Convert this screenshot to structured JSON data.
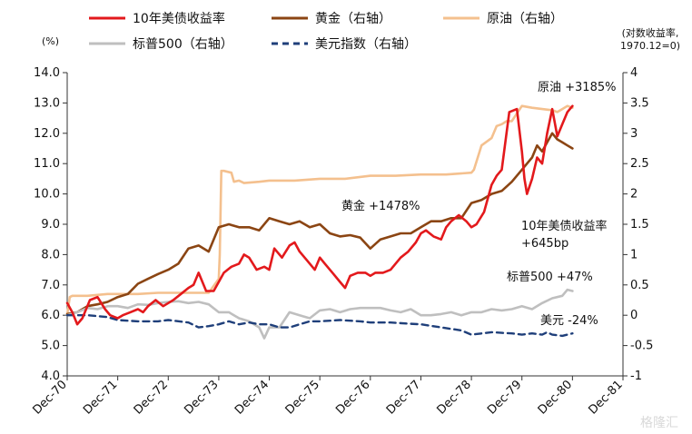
{
  "chart_data": {
    "type": "line",
    "title": "",
    "left_axis": {
      "label": "(%)",
      "range": [
        4.0,
        14.0
      ],
      "ticks": [
        "4.0",
        "5.0",
        "6.0",
        "7.0",
        "8.0",
        "9.0",
        "10.0",
        "11.0",
        "12.0",
        "13.0",
        "14.0"
      ]
    },
    "right_axis": {
      "label_line1": "(对数收益率,",
      "label_line2": "1970.12=0)",
      "range": [
        -1,
        4
      ],
      "ticks": [
        "-1",
        "-0.5",
        "0",
        "0.5",
        "1",
        "1.5",
        "2",
        "2.5",
        "3",
        "3.5",
        "4"
      ]
    },
    "x_axis": {
      "ticks": [
        "Dec-70",
        "Dec-71",
        "Dec-72",
        "Dec-73",
        "Dec-74",
        "Dec-75",
        "Dec-76",
        "Dec-77",
        "Dec-78",
        "Dec-79",
        "Dec-80",
        "Dec-81"
      ]
    },
    "legend": [
      {
        "key": "treasury",
        "label": "10年美债收益率",
        "color": "#e3191c",
        "style": "solid"
      },
      {
        "key": "gold",
        "label": "黄金（右轴）",
        "color": "#8b4513",
        "style": "solid"
      },
      {
        "key": "oil",
        "label": "原油（右轴）",
        "color": "#f4c08e",
        "style": "solid"
      },
      {
        "key": "sp500",
        "label": "标普500（右轴）",
        "color": "#bfbfbf",
        "style": "solid"
      },
      {
        "key": "usd",
        "label": "美元指数（右轴）",
        "color": "#1f3f7a",
        "style": "dashed"
      }
    ],
    "series": [
      {
        "key": "treasury",
        "name": "10年美债收益率",
        "axis": "left",
        "color": "#e3191c",
        "x": [
          0,
          0.1,
          0.2,
          0.3,
          0.45,
          0.6,
          0.75,
          0.85,
          1.0,
          1.1,
          1.25,
          1.4,
          1.5,
          1.6,
          1.75,
          1.9,
          2.0,
          2.1,
          2.25,
          2.4,
          2.5,
          2.6,
          2.75,
          2.9,
          3.0,
          3.1,
          3.25,
          3.4,
          3.5,
          3.6,
          3.75,
          3.9,
          4.0,
          4.1,
          4.25,
          4.4,
          4.5,
          4.6,
          4.75,
          4.9,
          5.0,
          5.1,
          5.25,
          5.4,
          5.5,
          5.6,
          5.75,
          5.9,
          6.0,
          6.1,
          6.25,
          6.4,
          6.5,
          6.6,
          6.75,
          6.9,
          7.0,
          7.1,
          7.25,
          7.4,
          7.5,
          7.6,
          7.75,
          7.9,
          8.0,
          8.1,
          8.25,
          8.4,
          8.5,
          8.6,
          8.75,
          8.9,
          9.0,
          9.05,
          9.1,
          9.2,
          9.3,
          9.4,
          9.5,
          9.6,
          9.7,
          9.8,
          9.9,
          10.0
        ],
        "values": [
          6.4,
          6.1,
          5.7,
          5.9,
          6.5,
          6.6,
          6.2,
          6.0,
          5.9,
          6.0,
          6.1,
          6.2,
          6.1,
          6.3,
          6.5,
          6.3,
          6.4,
          6.5,
          6.7,
          6.9,
          7.0,
          7.4,
          6.8,
          6.8,
          7.1,
          7.4,
          7.6,
          7.7,
          8.0,
          7.9,
          7.5,
          7.6,
          7.5,
          8.2,
          7.9,
          8.3,
          8.4,
          8.1,
          7.8,
          7.5,
          7.9,
          7.7,
          7.4,
          7.1,
          6.9,
          7.3,
          7.4,
          7.4,
          7.3,
          7.4,
          7.4,
          7.5,
          7.7,
          7.9,
          8.1,
          8.4,
          8.7,
          8.8,
          8.6,
          8.5,
          8.9,
          9.1,
          9.3,
          9.1,
          8.9,
          9.0,
          9.4,
          10.3,
          10.6,
          10.8,
          12.7,
          12.8,
          11.4,
          10.5,
          10.0,
          10.5,
          11.2,
          11.0,
          12.0,
          12.8,
          11.9,
          12.3,
          12.7,
          12.9
        ]
      },
      {
        "key": "gold",
        "name": "黄金（右轴）",
        "axis": "right",
        "color": "#8b4513",
        "x": [
          0,
          0.2,
          0.4,
          0.6,
          0.8,
          1.0,
          1.2,
          1.4,
          1.6,
          1.8,
          2.0,
          2.2,
          2.4,
          2.6,
          2.8,
          3.0,
          3.2,
          3.4,
          3.6,
          3.8,
          4.0,
          4.2,
          4.4,
          4.6,
          4.8,
          5.0,
          5.2,
          5.4,
          5.6,
          5.8,
          6.0,
          6.2,
          6.4,
          6.6,
          6.8,
          7.0,
          7.2,
          7.4,
          7.6,
          7.8,
          8.0,
          8.2,
          8.4,
          8.6,
          8.8,
          9.0,
          9.1,
          9.2,
          9.3,
          9.4,
          9.5,
          9.6,
          9.7,
          9.8,
          9.9,
          10.0
        ],
        "values": [
          0.02,
          0.05,
          0.15,
          0.18,
          0.22,
          0.3,
          0.35,
          0.52,
          0.6,
          0.68,
          0.75,
          0.85,
          1.1,
          1.15,
          1.05,
          1.45,
          1.5,
          1.45,
          1.45,
          1.4,
          1.6,
          1.55,
          1.5,
          1.55,
          1.45,
          1.5,
          1.35,
          1.3,
          1.32,
          1.28,
          1.1,
          1.25,
          1.3,
          1.35,
          1.35,
          1.45,
          1.55,
          1.55,
          1.6,
          1.6,
          1.85,
          1.9,
          2.0,
          2.05,
          2.2,
          2.4,
          2.5,
          2.6,
          2.8,
          2.7,
          2.85,
          3.0,
          2.9,
          2.85,
          2.8,
          2.75
        ]
      },
      {
        "key": "oil",
        "name": "原油（右轴）",
        "axis": "right",
        "color": "#f4c08e",
        "x": [
          0,
          0.05,
          0.1,
          0.4,
          0.8,
          1.0,
          1.4,
          1.8,
          2.0,
          2.4,
          2.8,
          3.0,
          3.02,
          3.05,
          3.1,
          3.25,
          3.3,
          3.4,
          3.5,
          3.8,
          4.0,
          4.5,
          5.0,
          5.5,
          6.0,
          6.5,
          7.0,
          7.5,
          8.0,
          8.05,
          8.2,
          8.4,
          8.5,
          8.6,
          8.7,
          8.8,
          9.0,
          9.2,
          9.4,
          9.6,
          9.7,
          9.8,
          9.9,
          10.0
        ],
        "values": [
          0.0,
          0.3,
          0.32,
          0.32,
          0.35,
          0.35,
          0.35,
          0.37,
          0.37,
          0.37,
          0.37,
          0.6,
          1.0,
          2.38,
          2.38,
          2.35,
          2.2,
          2.22,
          2.18,
          2.2,
          2.22,
          2.22,
          2.25,
          2.25,
          2.3,
          2.3,
          2.32,
          2.32,
          2.35,
          2.4,
          2.8,
          2.92,
          3.12,
          3.15,
          3.2,
          3.2,
          3.45,
          3.42,
          3.4,
          3.38,
          3.35,
          3.4,
          3.45,
          3.42
        ]
      },
      {
        "key": "sp500",
        "name": "标普500（右轴）",
        "axis": "right",
        "color": "#bfbfbf",
        "x": [
          0,
          0.2,
          0.4,
          0.6,
          0.8,
          1.0,
          1.2,
          1.4,
          1.6,
          1.8,
          2.0,
          2.2,
          2.4,
          2.6,
          2.8,
          3.0,
          3.2,
          3.4,
          3.6,
          3.8,
          3.9,
          4.0,
          4.2,
          4.4,
          4.6,
          4.8,
          5.0,
          5.2,
          5.4,
          5.6,
          5.8,
          6.0,
          6.2,
          6.4,
          6.6,
          6.8,
          7.0,
          7.2,
          7.4,
          7.6,
          7.8,
          8.0,
          8.2,
          8.4,
          8.6,
          8.8,
          9.0,
          9.2,
          9.4,
          9.6,
          9.8,
          9.9,
          10.0
        ],
        "values": [
          0.0,
          0.05,
          0.12,
          0.1,
          0.15,
          0.15,
          0.12,
          0.18,
          0.17,
          0.2,
          0.22,
          0.23,
          0.2,
          0.22,
          0.18,
          0.05,
          0.05,
          -0.05,
          -0.1,
          -0.2,
          -0.38,
          -0.2,
          -0.2,
          0.05,
          0.0,
          -0.05,
          0.08,
          0.1,
          0.05,
          0.1,
          0.12,
          0.12,
          0.12,
          0.08,
          0.05,
          0.1,
          0.0,
          0.0,
          0.02,
          0.05,
          0.0,
          0.05,
          0.05,
          0.1,
          0.08,
          0.1,
          0.15,
          0.1,
          0.2,
          0.28,
          0.32,
          0.42,
          0.4
        ]
      },
      {
        "key": "usd",
        "name": "美元指数（右轴）",
        "axis": "right",
        "color": "#1f3f7a",
        "x": [
          0,
          0.4,
          0.8,
          1.0,
          1.4,
          1.8,
          2.0,
          2.4,
          2.6,
          2.8,
          3.0,
          3.2,
          3.4,
          3.6,
          3.8,
          4.0,
          4.2,
          4.4,
          4.6,
          4.8,
          5.0,
          5.4,
          5.8,
          6.0,
          6.4,
          6.8,
          7.0,
          7.4,
          7.8,
          8.0,
          8.4,
          8.8,
          9.0,
          9.2,
          9.4,
          9.5,
          9.6,
          9.8,
          10.0
        ],
        "values": [
          0.0,
          0.0,
          -0.03,
          -0.08,
          -0.1,
          -0.1,
          -0.08,
          -0.12,
          -0.2,
          -0.18,
          -0.15,
          -0.1,
          -0.15,
          -0.12,
          -0.15,
          -0.15,
          -0.2,
          -0.2,
          -0.15,
          -0.1,
          -0.1,
          -0.08,
          -0.1,
          -0.12,
          -0.12,
          -0.14,
          -0.15,
          -0.2,
          -0.25,
          -0.32,
          -0.28,
          -0.3,
          -0.32,
          -0.3,
          -0.32,
          -0.28,
          -0.32,
          -0.34,
          -0.3
        ]
      }
    ],
    "annotations": [
      {
        "key": "oil",
        "text": "原油 +3185%"
      },
      {
        "key": "gold",
        "text": "黄金 +1478%"
      },
      {
        "key": "treasury_1",
        "text": "10年美债收益率"
      },
      {
        "key": "treasury_2",
        "text": "+645bp"
      },
      {
        "key": "sp500",
        "text": "标普500 +47%"
      },
      {
        "key": "usd",
        "text": "美元  -24%"
      }
    ],
    "watermark": "格隆汇",
    "grid": false,
    "legend_position": "top"
  }
}
